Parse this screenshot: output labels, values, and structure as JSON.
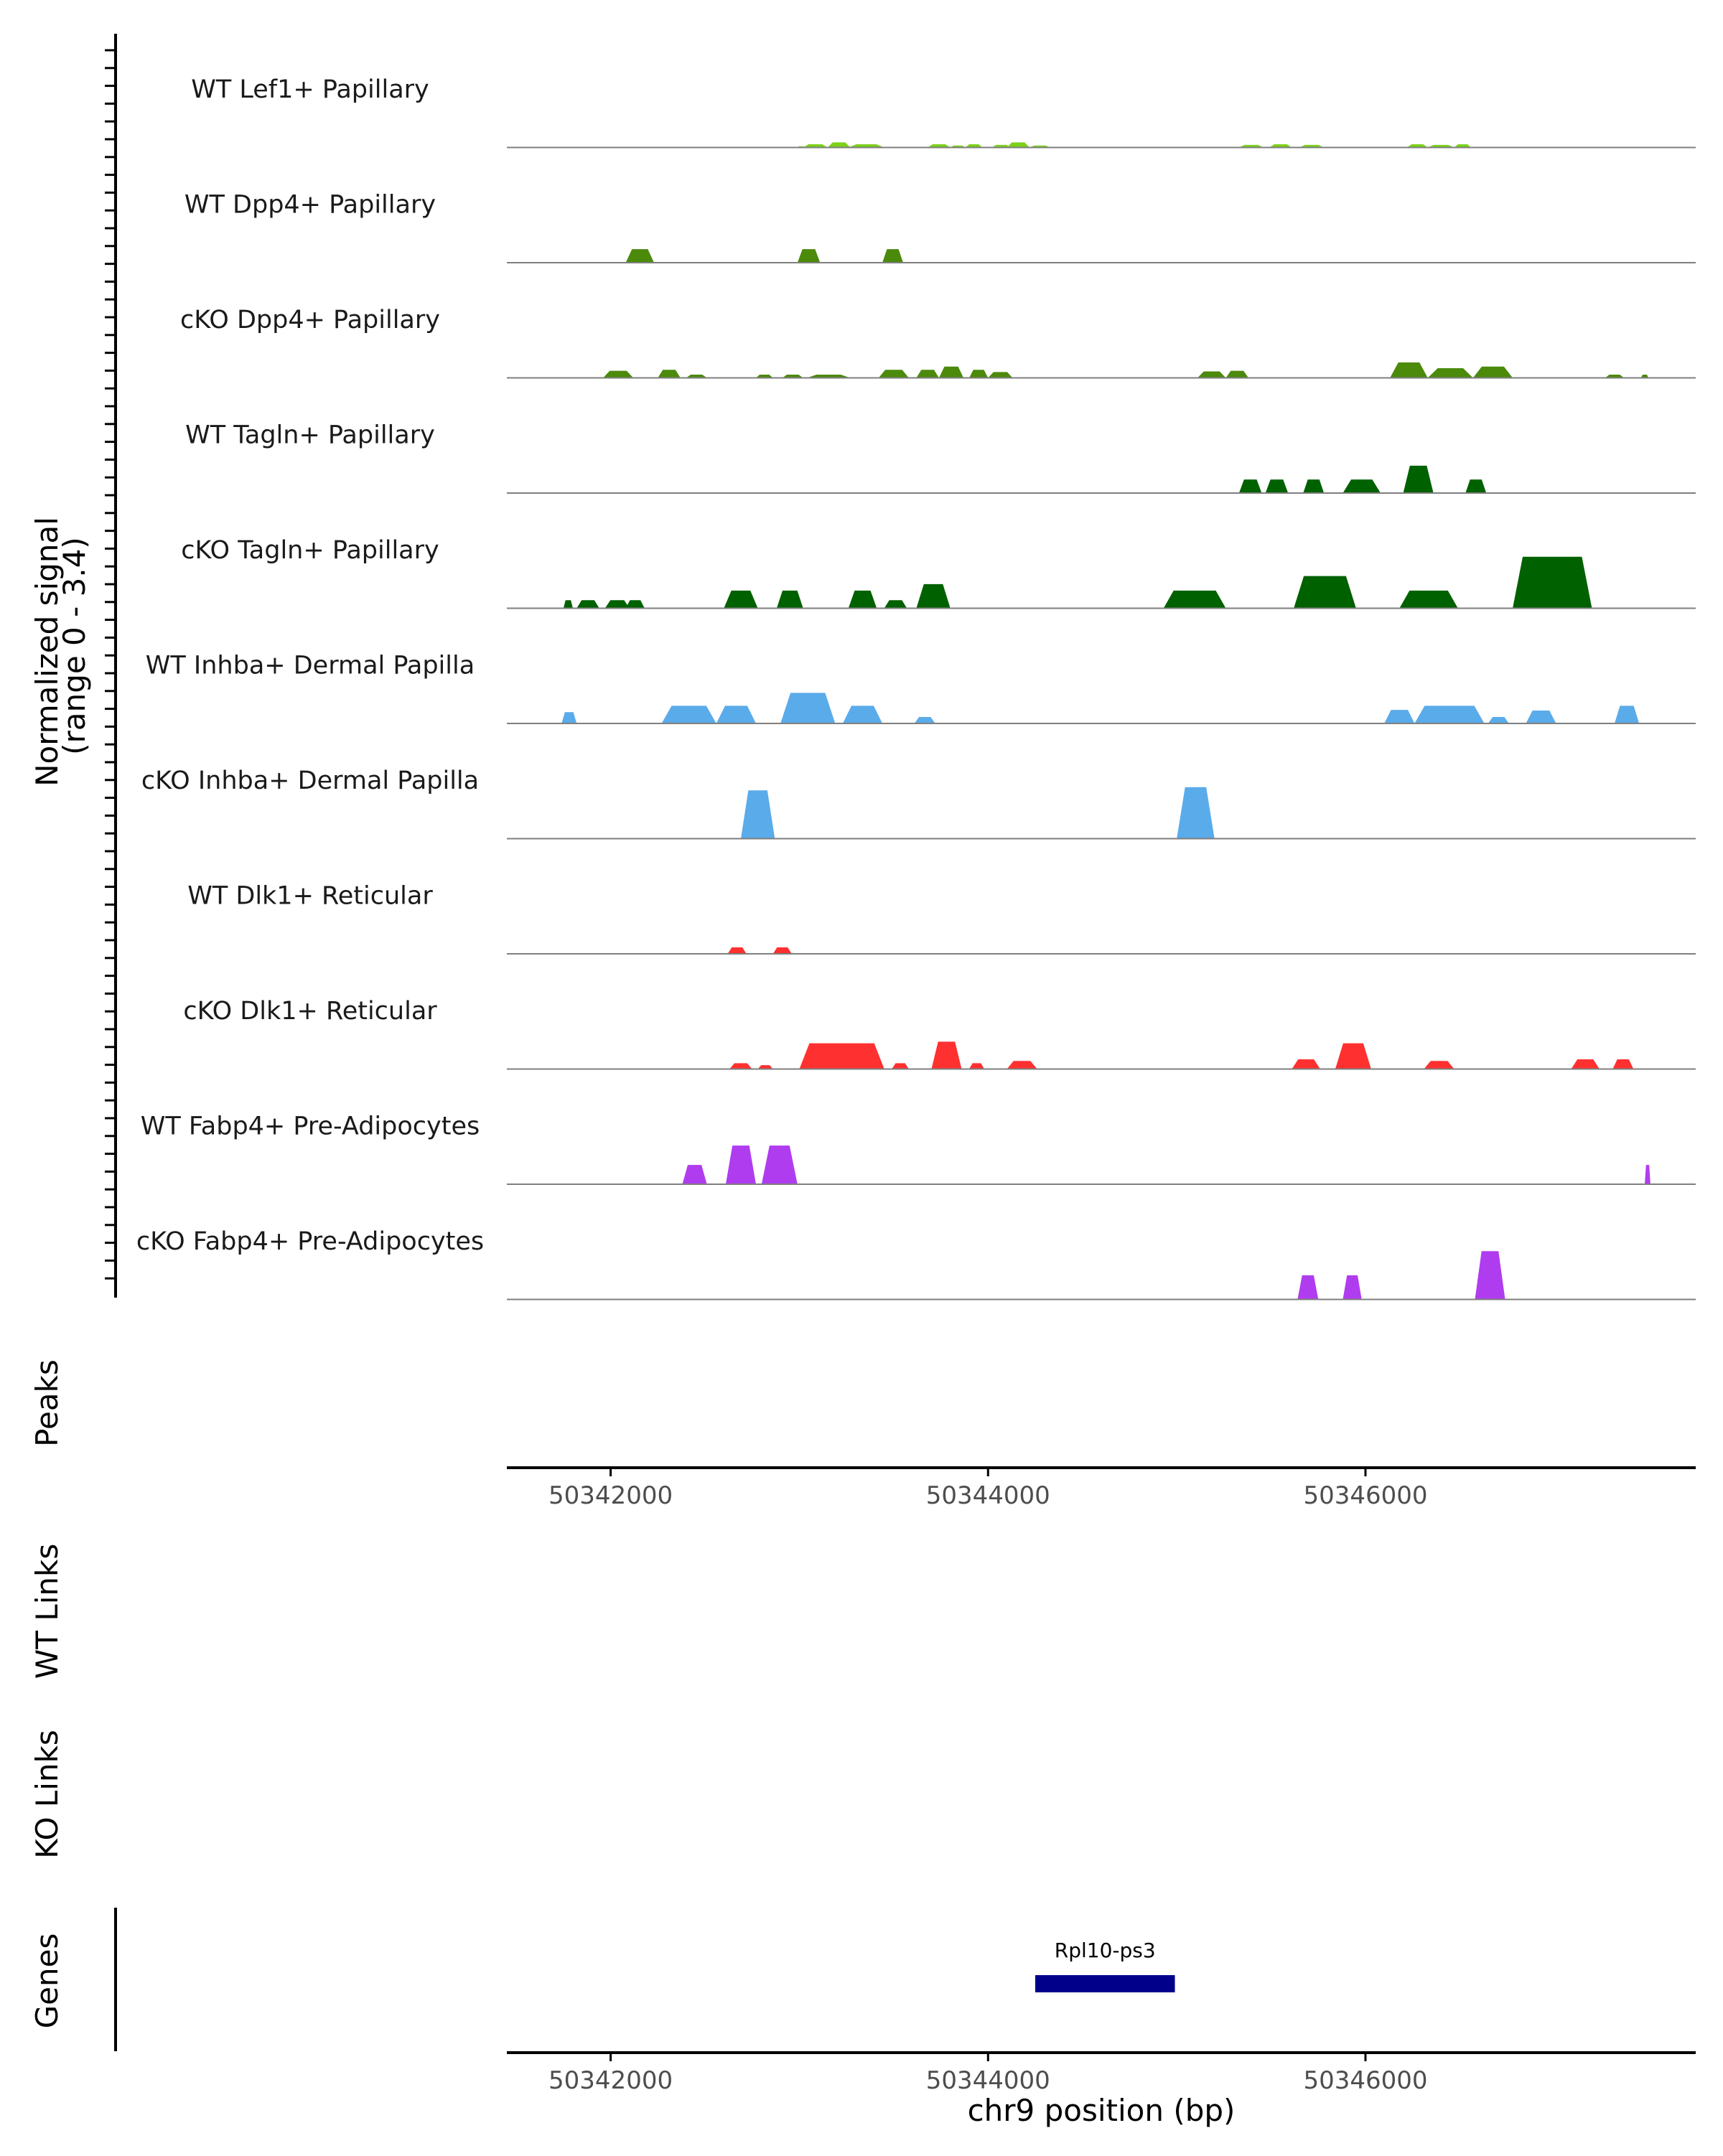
{
  "chart_data": {
    "type": "area",
    "title": "",
    "ylabel": "Normalized signal",
    "ylabel_range": "(range 0 - 3.4)",
    "y_range": [
      0,
      3.4
    ],
    "xlabel": "chr9 position (bp)",
    "x_range": [
      50341450,
      50347750
    ],
    "x_ticks": [
      50342000,
      50344000,
      50346000
    ],
    "x_tick_labels": [
      "50342000",
      "50344000",
      "50346000"
    ],
    "panel_labels": {
      "peaks": "Peaks",
      "wt_links": "WT Links",
      "ko_links": "KO Links",
      "genes": "Genes"
    },
    "tracks": [
      {
        "name": "WT Lef1+ Papillary",
        "color": "#7cd11a",
        "peaks": [
          [
            50342990,
            50343030,
            0.04
          ],
          [
            50343020,
            50343150,
            0.1
          ],
          [
            50343150,
            50343270,
            0.16
          ],
          [
            50343260,
            50343450,
            0.1
          ],
          [
            50343680,
            50343800,
            0.1
          ],
          [
            50343800,
            50343880,
            0.06
          ],
          [
            50343880,
            50343970,
            0.1
          ],
          [
            50344020,
            50344120,
            0.08
          ],
          [
            50344100,
            50344220,
            0.16
          ],
          [
            50344220,
            50344330,
            0.06
          ],
          [
            50345330,
            50345460,
            0.08
          ],
          [
            50345490,
            50345610,
            0.1
          ],
          [
            50345650,
            50345780,
            0.08
          ],
          [
            50346220,
            50346330,
            0.1
          ],
          [
            50346330,
            50346470,
            0.08
          ],
          [
            50346470,
            50346560,
            0.1
          ]
        ]
      },
      {
        "name": "WT Dpp4+ Papillary",
        "color": "#4b8a0b",
        "peaks": [
          [
            50342080,
            50342230,
            0.42
          ],
          [
            50342990,
            50343110,
            0.42
          ],
          [
            50343440,
            50343550,
            0.42
          ]
        ]
      },
      {
        "name": "cKO Dpp4+ Papillary",
        "color": "#4b8a0b",
        "peaks": [
          [
            50341960,
            50342120,
            0.22
          ],
          [
            50342250,
            50342370,
            0.25
          ],
          [
            50342400,
            50342510,
            0.1
          ],
          [
            50342770,
            50342860,
            0.1
          ],
          [
            50342910,
            50343020,
            0.1
          ],
          [
            50343040,
            50343270,
            0.1
          ],
          [
            50343420,
            50343580,
            0.25
          ],
          [
            50343620,
            50343740,
            0.25
          ],
          [
            50343740,
            50343870,
            0.35
          ],
          [
            50343900,
            50344000,
            0.25
          ],
          [
            50344000,
            50344130,
            0.18
          ],
          [
            50345110,
            50345260,
            0.2
          ],
          [
            50345260,
            50345380,
            0.22
          ],
          [
            50346130,
            50346330,
            0.48
          ],
          [
            50346330,
            50346570,
            0.3
          ],
          [
            50346570,
            50346780,
            0.35
          ],
          [
            50347270,
            50347370,
            0.1
          ],
          [
            50347460,
            50347500,
            0.1
          ]
        ]
      },
      {
        "name": "WT Tagln+ Papillary",
        "color": "#006100",
        "peaks": [
          [
            50345330,
            50345450,
            0.42
          ],
          [
            50345470,
            50345590,
            0.42
          ],
          [
            50345670,
            50345780,
            0.42
          ],
          [
            50345880,
            50346080,
            0.42
          ],
          [
            50346200,
            50346360,
            0.85
          ],
          [
            50346530,
            50346640,
            0.42
          ]
        ]
      },
      {
        "name": "cKO Tagln+ Papillary",
        "color": "#006100",
        "peaks": [
          [
            50341750,
            50341800,
            0.25
          ],
          [
            50341820,
            50341940,
            0.25
          ],
          [
            50341970,
            50342100,
            0.25
          ],
          [
            50342080,
            50342180,
            0.25
          ],
          [
            50342600,
            50342780,
            0.55
          ],
          [
            50342880,
            50343020,
            0.55
          ],
          [
            50343260,
            50343410,
            0.55
          ],
          [
            50343450,
            50343570,
            0.25
          ],
          [
            50343620,
            50343800,
            0.75
          ],
          [
            50344930,
            50345260,
            0.55
          ],
          [
            50345620,
            50345950,
            1.0
          ],
          [
            50346180,
            50346490,
            0.55
          ],
          [
            50346780,
            50347200,
            1.6
          ]
        ]
      },
      {
        "name": "WT Inhba+ Dermal Papilla",
        "color": "#5aabea",
        "peaks": [
          [
            50341740,
            50341820,
            0.35
          ],
          [
            50342270,
            50342560,
            0.55
          ],
          [
            50342560,
            50342770,
            0.55
          ],
          [
            50342900,
            50343190,
            0.95
          ],
          [
            50343230,
            50343440,
            0.55
          ],
          [
            50343610,
            50343720,
            0.2
          ],
          [
            50346100,
            50346260,
            0.42
          ],
          [
            50346260,
            50346630,
            0.55
          ],
          [
            50346650,
            50346760,
            0.2
          ],
          [
            50346850,
            50347010,
            0.4
          ],
          [
            50347320,
            50347450,
            0.55
          ]
        ]
      },
      {
        "name": "cKO Inhba+ Dermal Papilla",
        "color": "#5aabea",
        "peaks": [
          [
            50342690,
            50342870,
            1.5
          ],
          [
            50345000,
            50345200,
            1.6
          ]
        ]
      },
      {
        "name": "WT Dlk1+ Reticular",
        "color": "#ff3030",
        "peaks": [
          [
            50342620,
            50342720,
            0.2
          ],
          [
            50342860,
            50342960,
            0.2
          ]
        ]
      },
      {
        "name": "cKO Dlk1+ Reticular",
        "color": "#ff3030",
        "peaks": [
          [
            50342630,
            50342750,
            0.18
          ],
          [
            50342780,
            50342860,
            0.12
          ],
          [
            50343000,
            50343450,
            0.8
          ],
          [
            50343490,
            50343580,
            0.18
          ],
          [
            50343700,
            50343860,
            0.85
          ],
          [
            50343900,
            50343980,
            0.18
          ],
          [
            50344100,
            50344260,
            0.25
          ],
          [
            50345610,
            50345760,
            0.3
          ],
          [
            50345840,
            50346030,
            0.8
          ],
          [
            50346310,
            50346470,
            0.25
          ],
          [
            50347090,
            50347240,
            0.3
          ],
          [
            50347310,
            50347420,
            0.3
          ]
        ]
      },
      {
        "name": "WT Fabp4+ Pre-Adipocytes",
        "color": "#b03cf0",
        "peaks": [
          [
            50342380,
            50342510,
            0.6
          ],
          [
            50342610,
            50342770,
            1.2
          ],
          [
            50342800,
            50342990,
            1.2
          ],
          [
            50347480,
            50347510,
            0.6
          ]
        ]
      },
      {
        "name": "cKO Fabp4+ Pre-Adipocytes",
        "color": "#b03cf0",
        "peaks": [
          [
            50345640,
            50345750,
            0.75
          ],
          [
            50345880,
            50345980,
            0.75
          ],
          [
            50346580,
            50346740,
            1.5
          ]
        ]
      }
    ],
    "genes": [
      {
        "name": "Rpl10-ps3",
        "start": 50344250,
        "end": 50344990,
        "color": "#00008b"
      }
    ]
  }
}
